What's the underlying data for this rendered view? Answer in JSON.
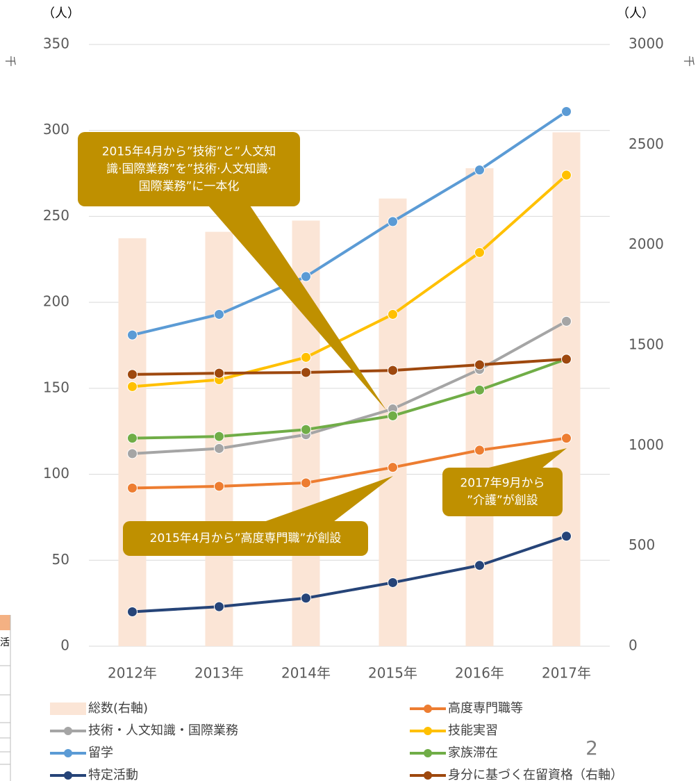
{
  "chart_data": {
    "type": "bar_line",
    "y_unit": "（人）",
    "y2_unit": "（人）",
    "y_scale_label": "千",
    "y2_scale_label": "千",
    "categories": [
      "2012年",
      "2013年",
      "2014年",
      "2015年",
      "2016年",
      "2017年"
    ],
    "series": [
      {
        "name": "総数(右軸)",
        "type": "bar",
        "axis": "y2",
        "color": "#fbe5d6",
        "values": [
          2034,
          2066,
          2122,
          2232,
          2383,
          2562
        ]
      },
      {
        "name": "高度専門職等",
        "type": "line",
        "color": "#ed7d31",
        "values": [
          92,
          93,
          95,
          104,
          114,
          121
        ]
      },
      {
        "name": "技術・人文知識・国際業務",
        "type": "line",
        "color": "#a5a5a5",
        "values": [
          112,
          115,
          123,
          138,
          161,
          189
        ]
      },
      {
        "name": "技能実習",
        "type": "line",
        "color": "#ffc000",
        "values": [
          151,
          155,
          168,
          193,
          229,
          274
        ]
      },
      {
        "name": "留学",
        "type": "line",
        "color": "#5b9bd5",
        "values": [
          181,
          193,
          215,
          247,
          277,
          311
        ]
      },
      {
        "name": "家族滞在",
        "type": "line",
        "color": "#70ad47",
        "values": [
          121,
          122,
          126,
          134,
          149,
          167
        ]
      },
      {
        "name": "特定活動",
        "type": "line",
        "color": "#264478",
        "values": [
          20,
          23,
          28,
          37,
          47,
          64
        ]
      },
      {
        "name": "身分に基づく在留資格（右軸）",
        "type": "line",
        "axis": "y2",
        "color": "#9e480e",
        "values": [
          1355,
          1361,
          1365,
          1375,
          1403,
          1431
        ]
      }
    ],
    "ylim": [
      0,
      350
    ],
    "yticks": [
      0,
      50,
      100,
      150,
      200,
      250,
      300,
      350
    ],
    "y2lim": [
      0,
      3000
    ],
    "y2ticks": [
      0,
      500,
      1000,
      1500,
      2000,
      2500,
      3000
    ],
    "grid": true,
    "annotations": [
      {
        "lines": [
          "2015年4月から”技術”と”人文知",
          "識·国際業務”を”技術·人文知識·",
          "国際業務”に一本化"
        ]
      },
      {
        "lines": [
          "2015年4月から”高度専門職”が創設"
        ]
      },
      {
        "lines": [
          "2017年9月から",
          "”介護”が創設"
        ]
      }
    ],
    "page_number": "2",
    "side_fragment": "活"
  }
}
